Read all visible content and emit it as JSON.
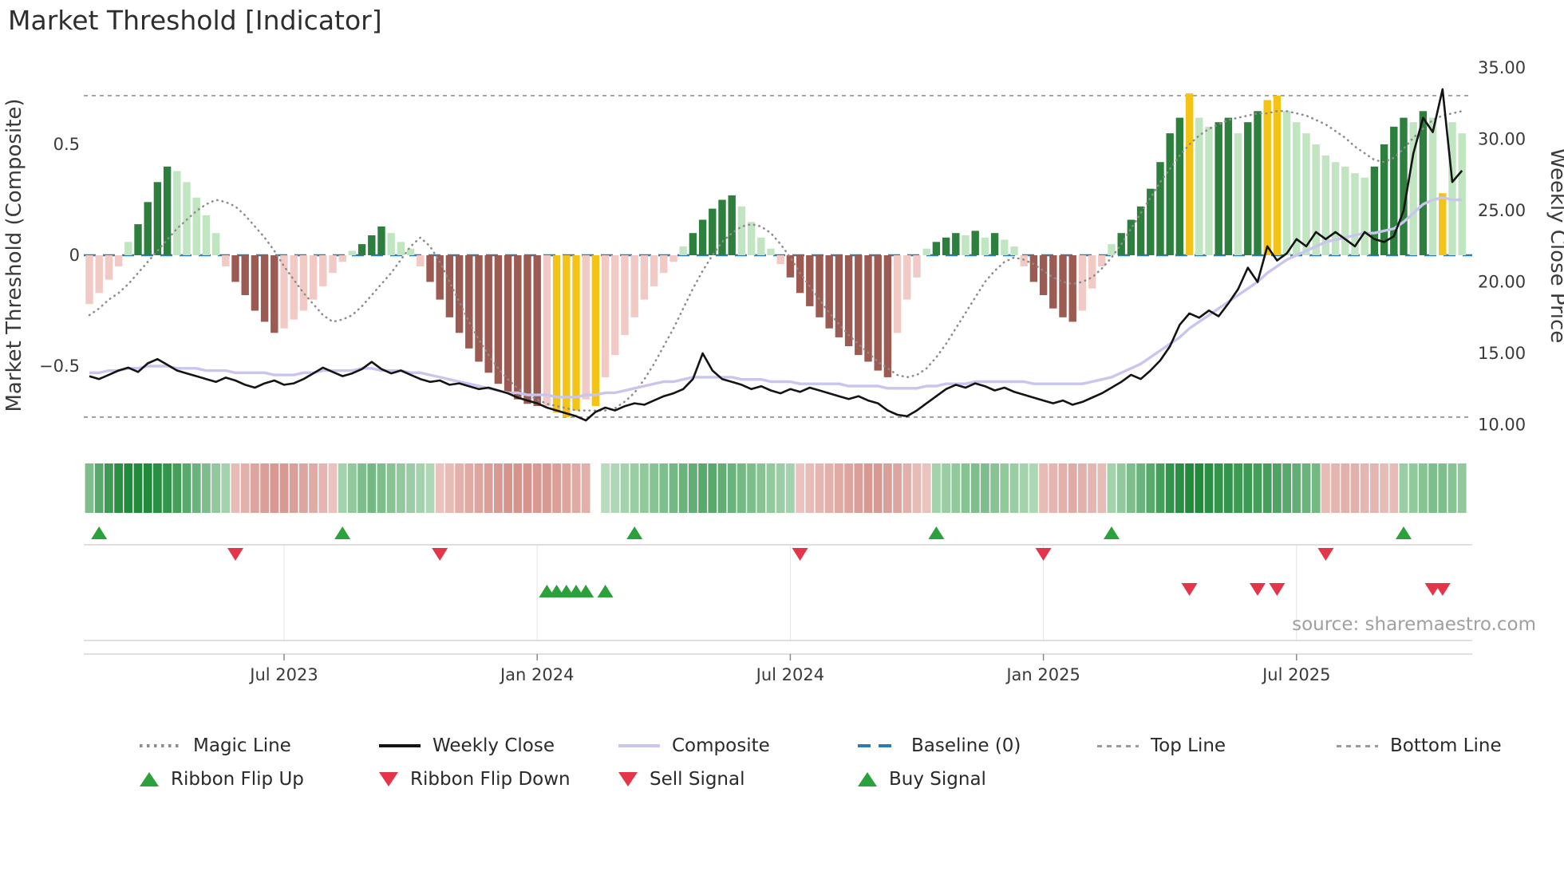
{
  "title": "Market Threshold [Indicator]",
  "source": "source: sharemaestro.com",
  "colors": {
    "bar_green_dark": "#2c7f3c",
    "bar_green_light": "#c0e5c0",
    "bar_red_dark": "#9b5a52",
    "bar_red_light": "#f1c9c5",
    "gold": "#f3c317",
    "ribbon_green_dark": "#1f8b3b",
    "ribbon_green_light": "#ddf0dd",
    "ribbon_red_dark": "#c46b62",
    "ribbon_red_light": "#f6dfdc",
    "magic_line": "#8c8c8c",
    "weekly_close": "#141414",
    "composite_line": "#c8c5ef",
    "baseline": "#2b7cb5",
    "guide_line": "#9a9a9a",
    "flip_up": "#2aa13a",
    "flip_down": "#e4354a",
    "grid": "#e3e3e3",
    "separator": "#cccccc",
    "axis_text": "#3a3a3a",
    "source_text": "#a0a0a0"
  },
  "chart_data": {
    "type": "bar",
    "x_unit": "week",
    "weeks": 142,
    "x_tick_weeks": [
      20,
      46,
      72,
      98,
      124
    ],
    "x_tick_labels": [
      "Jul 2023",
      "Jan 2024",
      "Jul 2024",
      "Jan 2025",
      "Jul 2025"
    ],
    "left_axis": {
      "label": "Market Threshold (Composite)",
      "tick_values": [
        0.5,
        0,
        -0.5
      ],
      "tick_labels": [
        "0.5",
        "0",
        "−0.5"
      ],
      "range": [
        -0.85,
        0.8
      ]
    },
    "right_axis": {
      "label": "Weekly Close Price",
      "tick_values": [
        35,
        30,
        25,
        20,
        15,
        10
      ],
      "tick_labels": [
        "35.00",
        "30.00",
        "25.00",
        "20.00",
        "15.00",
        "10.00"
      ],
      "range": [
        8.75,
        36
      ]
    },
    "top_line": 0.72,
    "bottom_line": -0.73,
    "baseline": 0,
    "composite_bars": [
      -0.22,
      -0.17,
      -0.11,
      -0.05,
      0.06,
      0.14,
      0.24,
      0.33,
      0.4,
      0.38,
      0.33,
      0.26,
      0.18,
      0.1,
      -0.05,
      -0.12,
      -0.18,
      -0.25,
      -0.3,
      -0.35,
      -0.33,
      -0.29,
      -0.25,
      -0.2,
      -0.14,
      -0.08,
      -0.03,
      0.02,
      0.05,
      0.09,
      0.13,
      0.1,
      0.06,
      0.03,
      -0.05,
      -0.12,
      -0.2,
      -0.28,
      -0.35,
      -0.42,
      -0.48,
      -0.53,
      -0.58,
      -0.62,
      -0.65,
      -0.67,
      -0.68,
      -0.68,
      -0.71,
      -0.73,
      -0.7,
      -0.65,
      -0.68,
      -0.55,
      -0.45,
      -0.36,
      -0.28,
      -0.2,
      -0.14,
      -0.08,
      -0.03,
      0.04,
      0.1,
      0.16,
      0.21,
      0.25,
      0.27,
      0.22,
      0.15,
      0.08,
      0.03,
      -0.04,
      -0.1,
      -0.17,
      -0.23,
      -0.28,
      -0.33,
      -0.37,
      -0.41,
      -0.45,
      -0.48,
      -0.52,
      -0.55,
      -0.35,
      -0.2,
      -0.1,
      0.03,
      0.06,
      0.08,
      0.1,
      0.09,
      0.11,
      0.08,
      0.1,
      0.07,
      0.04,
      -0.05,
      -0.12,
      -0.18,
      -0.24,
      -0.28,
      -0.3,
      -0.25,
      -0.15,
      -0.05,
      0.05,
      0.1,
      0.16,
      0.22,
      0.3,
      0.42,
      0.55,
      0.62,
      0.73,
      0.62,
      0.58,
      0.6,
      0.62,
      0.55,
      0.6,
      0.65,
      0.7,
      0.72,
      0.65,
      0.6,
      0.55,
      0.5,
      0.45,
      0.42,
      0.4,
      0.37,
      0.35,
      0.4,
      0.5,
      0.58,
      0.62,
      0.6,
      0.65,
      0.62,
      0.28,
      0.6,
      0.55
    ],
    "gold_bar_weeks": [
      48,
      49,
      50,
      52,
      113,
      121,
      122,
      139
    ],
    "weekly_close": [
      13.4,
      13.2,
      13.5,
      13.8,
      14.0,
      13.7,
      14.3,
      14.6,
      14.2,
      13.8,
      13.6,
      13.4,
      13.2,
      13.0,
      13.3,
      13.1,
      12.8,
      12.6,
      12.9,
      13.1,
      12.8,
      12.9,
      13.2,
      13.6,
      14.0,
      13.7,
      13.4,
      13.6,
      13.9,
      14.4,
      13.9,
      13.6,
      13.8,
      13.5,
      13.2,
      13.0,
      13.1,
      12.8,
      12.9,
      12.7,
      12.5,
      12.6,
      12.4,
      12.2,
      11.9,
      11.7,
      11.5,
      11.2,
      11.0,
      10.8,
      10.6,
      10.3,
      10.9,
      11.2,
      11.0,
      11.3,
      11.5,
      11.4,
      11.7,
      12.0,
      12.2,
      12.5,
      13.2,
      15.0,
      13.8,
      13.2,
      13.0,
      12.8,
      12.5,
      12.7,
      12.4,
      12.2,
      12.5,
      12.3,
      12.6,
      12.4,
      12.2,
      12.0,
      11.8,
      12.0,
      11.7,
      11.5,
      11.0,
      10.7,
      10.6,
      11.0,
      11.5,
      12.0,
      12.5,
      12.8,
      12.6,
      12.9,
      12.7,
      12.4,
      12.6,
      12.3,
      12.1,
      11.9,
      11.7,
      11.5,
      11.7,
      11.4,
      11.6,
      11.9,
      12.2,
      12.6,
      13.0,
      13.5,
      13.2,
      13.8,
      14.5,
      15.5,
      17.0,
      17.8,
      17.5,
      18.0,
      17.6,
      18.5,
      19.5,
      21.0,
      20.0,
      22.5,
      21.5,
      22.0,
      23.0,
      22.5,
      23.5,
      23.0,
      23.5,
      23.0,
      22.5,
      23.5,
      23.0,
      22.8,
      23.2,
      25.0,
      29.0,
      31.5,
      30.5,
      33.5,
      27.0,
      27.8
    ],
    "composite_line": [
      -0.53,
      -0.53,
      -0.52,
      -0.52,
      -0.51,
      -0.51,
      -0.5,
      -0.5,
      -0.5,
      -0.51,
      -0.51,
      -0.51,
      -0.52,
      -0.52,
      -0.52,
      -0.53,
      -0.53,
      -0.53,
      -0.53,
      -0.54,
      -0.54,
      -0.54,
      -0.53,
      -0.53,
      -0.52,
      -0.52,
      -0.52,
      -0.52,
      -0.51,
      -0.51,
      -0.52,
      -0.52,
      -0.52,
      -0.53,
      -0.53,
      -0.54,
      -0.55,
      -0.56,
      -0.57,
      -0.58,
      -0.59,
      -0.6,
      -0.61,
      -0.62,
      -0.62,
      -0.63,
      -0.63,
      -0.63,
      -0.64,
      -0.64,
      -0.64,
      -0.63,
      -0.63,
      -0.62,
      -0.62,
      -0.61,
      -0.6,
      -0.59,
      -0.58,
      -0.57,
      -0.57,
      -0.56,
      -0.55,
      -0.55,
      -0.55,
      -0.55,
      -0.55,
      -0.56,
      -0.56,
      -0.56,
      -0.57,
      -0.57,
      -0.57,
      -0.58,
      -0.58,
      -0.58,
      -0.58,
      -0.58,
      -0.59,
      -0.59,
      -0.59,
      -0.59,
      -0.6,
      -0.6,
      -0.6,
      -0.6,
      -0.59,
      -0.59,
      -0.58,
      -0.58,
      -0.58,
      -0.57,
      -0.57,
      -0.57,
      -0.57,
      -0.57,
      -0.57,
      -0.58,
      -0.58,
      -0.58,
      -0.58,
      -0.58,
      -0.58,
      -0.57,
      -0.56,
      -0.55,
      -0.53,
      -0.51,
      -0.49,
      -0.46,
      -0.43,
      -0.4,
      -0.37,
      -0.33,
      -0.3,
      -0.27,
      -0.24,
      -0.21,
      -0.18,
      -0.15,
      -0.12,
      -0.08,
      -0.05,
      -0.02,
      0.0,
      0.02,
      0.04,
      0.06,
      0.07,
      0.08,
      0.09,
      0.1,
      0.1,
      0.11,
      0.12,
      0.15,
      0.19,
      0.23,
      0.25,
      0.26,
      0.25,
      0.25
    ],
    "magic_line": [
      -0.27,
      -0.24,
      -0.2,
      -0.17,
      -0.13,
      -0.08,
      -0.03,
      0.02,
      0.07,
      0.12,
      0.16,
      0.2,
      0.23,
      0.25,
      0.24,
      0.22,
      0.18,
      0.13,
      0.08,
      0.02,
      -0.05,
      -0.11,
      -0.17,
      -0.22,
      -0.27,
      -0.3,
      -0.29,
      -0.27,
      -0.23,
      -0.18,
      -0.13,
      -0.08,
      -0.02,
      0.04,
      0.08,
      0.04,
      -0.03,
      -0.12,
      -0.21,
      -0.3,
      -0.38,
      -0.45,
      -0.51,
      -0.56,
      -0.6,
      -0.63,
      -0.65,
      -0.67,
      -0.68,
      -0.69,
      -0.7,
      -0.7,
      -0.7,
      -0.7,
      -0.69,
      -0.66,
      -0.62,
      -0.56,
      -0.49,
      -0.41,
      -0.33,
      -0.24,
      -0.15,
      -0.07,
      0.0,
      0.06,
      0.1,
      0.13,
      0.14,
      0.13,
      0.1,
      0.05,
      -0.01,
      -0.08,
      -0.14,
      -0.2,
      -0.26,
      -0.31,
      -0.36,
      -0.4,
      -0.44,
      -0.48,
      -0.51,
      -0.54,
      -0.55,
      -0.54,
      -0.51,
      -0.46,
      -0.4,
      -0.33,
      -0.26,
      -0.19,
      -0.12,
      -0.07,
      -0.03,
      -0.01,
      -0.02,
      -0.04,
      -0.07,
      -0.1,
      -0.12,
      -0.13,
      -0.12,
      -0.1,
      -0.06,
      -0.01,
      0.05,
      0.12,
      0.19,
      0.26,
      0.33,
      0.39,
      0.45,
      0.5,
      0.54,
      0.57,
      0.59,
      0.61,
      0.62,
      0.63,
      0.64,
      0.64,
      0.65,
      0.65,
      0.64,
      0.63,
      0.61,
      0.59,
      0.56,
      0.53,
      0.49,
      0.46,
      0.43,
      0.42,
      0.44,
      0.48,
      0.53,
      0.57,
      0.61,
      0.63,
      0.64,
      0.65
    ],
    "ribbon": [
      0.5,
      0.7,
      0.85,
      0.95,
      1,
      1,
      1,
      0.95,
      0.9,
      0.8,
      0.7,
      0.6,
      0.5,
      0.4,
      0.3,
      -0.3,
      -0.4,
      -0.5,
      -0.55,
      -0.6,
      -0.6,
      -0.55,
      -0.5,
      -0.45,
      -0.35,
      -0.25,
      0.3,
      0.4,
      0.5,
      0.55,
      0.5,
      0.45,
      0.4,
      0.35,
      0.3,
      0.25,
      -0.25,
      -0.3,
      -0.4,
      -0.45,
      -0.5,
      -0.55,
      -0.6,
      -0.65,
      -0.65,
      -0.65,
      -0.6,
      -0.6,
      -0.55,
      -0.5,
      -0.45,
      -0.4,
      0,
      0.2,
      0.25,
      0.3,
      0.35,
      0.4,
      0.45,
      0.5,
      0.55,
      0.6,
      0.65,
      0.7,
      0.7,
      0.65,
      0.6,
      0.55,
      0.5,
      0.45,
      0.4,
      0.35,
      0.3,
      -0.25,
      -0.3,
      -0.35,
      -0.4,
      -0.45,
      -0.5,
      -0.55,
      -0.6,
      -0.6,
      -0.55,
      -0.5,
      -0.4,
      -0.3,
      -0.25,
      0.3,
      0.35,
      0.4,
      0.45,
      0.5,
      0.5,
      0.45,
      0.4,
      0.35,
      0.3,
      0.25,
      -0.3,
      -0.35,
      -0.4,
      -0.45,
      -0.4,
      -0.35,
      -0.3,
      0.3,
      0.4,
      0.5,
      0.6,
      0.7,
      0.8,
      0.9,
      0.95,
      1,
      1,
      0.95,
      0.9,
      0.9,
      0.85,
      0.85,
      0.8,
      0.8,
      0.75,
      0.7,
      0.65,
      0.6,
      0.55,
      -0.3,
      -0.35,
      -0.4,
      -0.4,
      -0.35,
      -0.35,
      -0.3,
      -0.3,
      0.35,
      0.4,
      0.45,
      0.5,
      0.5,
      0.45,
      0.4
    ],
    "markers": {
      "ribbon_flip_up_weeks": [
        1,
        26,
        56,
        87,
        105,
        135
      ],
      "ribbon_flip_down_weeks": [
        15,
        36,
        73,
        98,
        127
      ],
      "buy_signal_weeks": [
        47,
        48,
        49,
        50,
        51,
        53
      ],
      "sell_signal_weeks": [
        113,
        120,
        122,
        138,
        139
      ]
    }
  },
  "legend": {
    "row1": [
      {
        "label": "Magic Line",
        "swatch": "dotted",
        "color": "#8c8c8c"
      },
      {
        "label": "Weekly Close",
        "swatch": "solid",
        "color": "#141414"
      },
      {
        "label": "Composite",
        "swatch": "solid",
        "color": "#c8c5ef"
      },
      {
        "label": "Baseline (0)",
        "swatch": "dashed-long",
        "color": "#2b7cb5"
      },
      {
        "label": "Top Line",
        "swatch": "dashed",
        "color": "#9a9a9a"
      },
      {
        "label": "Bottom Line",
        "swatch": "dashed",
        "color": "#9a9a9a"
      }
    ],
    "row2": [
      {
        "label": "Ribbon Flip Up",
        "swatch": "triangle-up",
        "color": "#2aa13a"
      },
      {
        "label": "Ribbon Flip Down",
        "swatch": "triangle-down",
        "color": "#e4354a"
      },
      {
        "label": "Sell Signal",
        "swatch": "triangle-down",
        "color": "#e4354a"
      },
      {
        "label": "Buy Signal",
        "swatch": "triangle-up",
        "color": "#2aa13a"
      }
    ]
  }
}
